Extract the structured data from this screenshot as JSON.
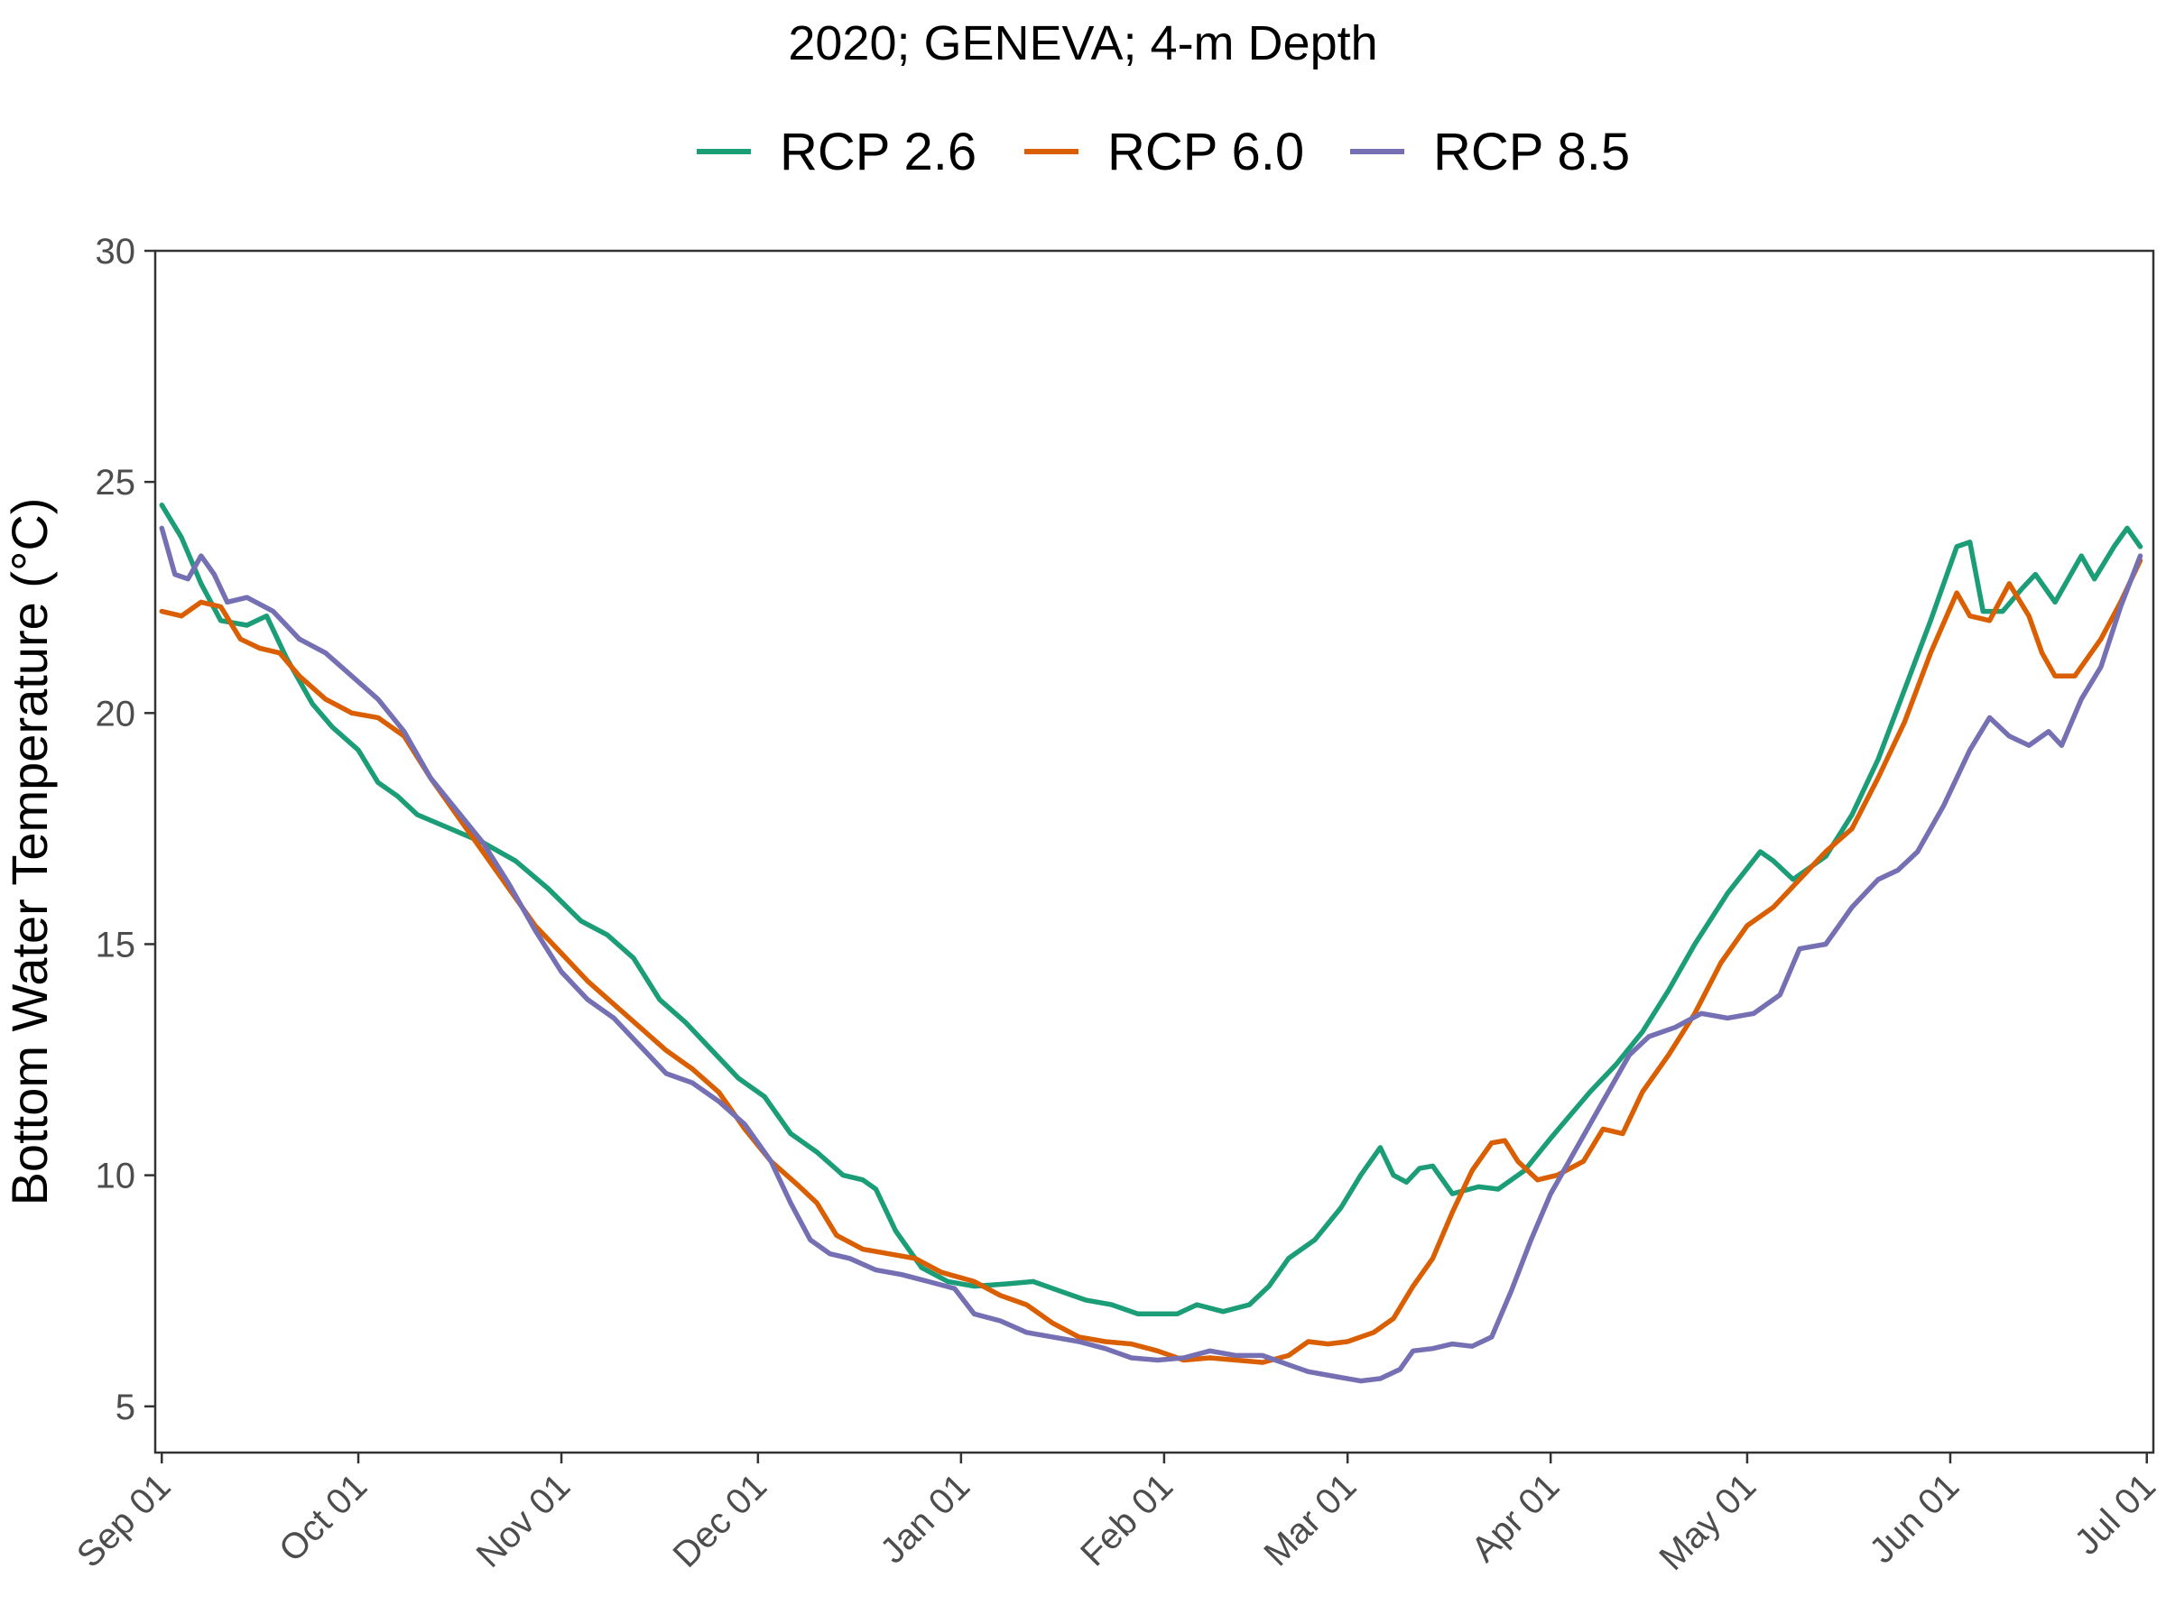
{
  "chart_data": {
    "type": "line",
    "title": "2020; GENEVA; 4-m Depth",
    "xlabel": "",
    "ylabel": "Bottom Water Temperature (°C)",
    "ylim": [
      4,
      30
    ],
    "xlim": [
      "2020-08-31",
      "2021-07-02"
    ],
    "yticks": [
      5,
      10,
      15,
      20,
      25,
      30
    ],
    "xticks": [
      {
        "date": "2020-09-01",
        "label": "Sep 01"
      },
      {
        "date": "2020-10-01",
        "label": "Oct 01"
      },
      {
        "date": "2020-11-01",
        "label": "Nov 01"
      },
      {
        "date": "2020-12-01",
        "label": "Dec 01"
      },
      {
        "date": "2021-01-01",
        "label": "Jan 01"
      },
      {
        "date": "2021-02-01",
        "label": "Feb 01"
      },
      {
        "date": "2021-03-01",
        "label": "Mar 01"
      },
      {
        "date": "2021-04-01",
        "label": "Apr 01"
      },
      {
        "date": "2021-05-01",
        "label": "May 01"
      },
      {
        "date": "2021-06-01",
        "label": "Jun 01"
      },
      {
        "date": "2021-07-01",
        "label": "Jul 01"
      }
    ],
    "grid": false,
    "legend_position": "top",
    "series": [
      {
        "name": "RCP 2.6",
        "color": "#1b9e77",
        "points": [
          [
            "2020-09-01",
            24.5
          ],
          [
            "2020-09-04",
            23.8
          ],
          [
            "2020-09-07",
            22.8
          ],
          [
            "2020-09-10",
            22.0
          ],
          [
            "2020-09-14",
            21.9
          ],
          [
            "2020-09-17",
            22.1
          ],
          [
            "2020-09-20",
            21.2
          ],
          [
            "2020-09-24",
            20.2
          ],
          [
            "2020-09-27",
            19.7
          ],
          [
            "2020-10-01",
            19.2
          ],
          [
            "2020-10-04",
            18.5
          ],
          [
            "2020-10-07",
            18.2
          ],
          [
            "2020-10-10",
            17.8
          ],
          [
            "2020-10-15",
            17.5
          ],
          [
            "2020-10-20",
            17.2
          ],
          [
            "2020-10-25",
            16.8
          ],
          [
            "2020-10-30",
            16.2
          ],
          [
            "2020-11-04",
            15.5
          ],
          [
            "2020-11-08",
            15.2
          ],
          [
            "2020-11-12",
            14.7
          ],
          [
            "2020-11-16",
            13.8
          ],
          [
            "2020-11-20",
            13.3
          ],
          [
            "2020-11-24",
            12.7
          ],
          [
            "2020-11-28",
            12.1
          ],
          [
            "2020-12-02",
            11.7
          ],
          [
            "2020-12-06",
            10.9
          ],
          [
            "2020-12-10",
            10.5
          ],
          [
            "2020-12-14",
            10.0
          ],
          [
            "2020-12-17",
            9.9
          ],
          [
            "2020-12-19",
            9.7
          ],
          [
            "2020-12-22",
            8.8
          ],
          [
            "2020-12-26",
            8.0
          ],
          [
            "2020-12-30",
            7.7
          ],
          [
            "2021-01-03",
            7.6
          ],
          [
            "2021-01-08",
            7.65
          ],
          [
            "2021-01-12",
            7.7
          ],
          [
            "2021-01-16",
            7.5
          ],
          [
            "2021-01-20",
            7.3
          ],
          [
            "2021-01-24",
            7.2
          ],
          [
            "2021-01-28",
            7.0
          ],
          [
            "2021-02-03",
            7.0
          ],
          [
            "2021-02-06",
            7.2
          ],
          [
            "2021-02-10",
            7.05
          ],
          [
            "2021-02-14",
            7.2
          ],
          [
            "2021-02-17",
            7.6
          ],
          [
            "2021-02-20",
            8.2
          ],
          [
            "2021-02-24",
            8.6
          ],
          [
            "2021-02-28",
            9.3
          ],
          [
            "2021-03-03",
            10.0
          ],
          [
            "2021-03-06",
            10.6
          ],
          [
            "2021-03-08",
            10.0
          ],
          [
            "2021-03-10",
            9.85
          ],
          [
            "2021-03-12",
            10.15
          ],
          [
            "2021-03-14",
            10.2
          ],
          [
            "2021-03-17",
            9.6
          ],
          [
            "2021-03-21",
            9.75
          ],
          [
            "2021-03-24",
            9.7
          ],
          [
            "2021-03-28",
            10.1
          ],
          [
            "2021-04-01",
            10.8
          ],
          [
            "2021-04-04",
            11.3
          ],
          [
            "2021-04-07",
            11.8
          ],
          [
            "2021-04-11",
            12.4
          ],
          [
            "2021-04-15",
            13.1
          ],
          [
            "2021-04-19",
            14.0
          ],
          [
            "2021-04-23",
            15.0
          ],
          [
            "2021-04-28",
            16.1
          ],
          [
            "2021-05-03",
            17.0
          ],
          [
            "2021-05-05",
            16.8
          ],
          [
            "2021-05-08",
            16.4
          ],
          [
            "2021-05-13",
            16.9
          ],
          [
            "2021-05-17",
            17.8
          ],
          [
            "2021-05-21",
            19.0
          ],
          [
            "2021-05-25",
            20.5
          ],
          [
            "2021-05-29",
            22.0
          ],
          [
            "2021-06-02",
            23.6
          ],
          [
            "2021-06-04",
            23.7
          ],
          [
            "2021-06-06",
            22.2
          ],
          [
            "2021-06-09",
            22.2
          ],
          [
            "2021-06-12",
            22.7
          ],
          [
            "2021-06-14",
            23.0
          ],
          [
            "2021-06-17",
            22.4
          ],
          [
            "2021-06-21",
            23.4
          ],
          [
            "2021-06-23",
            22.9
          ],
          [
            "2021-06-26",
            23.6
          ],
          [
            "2021-06-28",
            24.0
          ],
          [
            "2021-06-30",
            23.6
          ]
        ]
      },
      {
        "name": "RCP 6.0",
        "color": "#d95f02",
        "points": [
          [
            "2020-09-01",
            22.2
          ],
          [
            "2020-09-04",
            22.1
          ],
          [
            "2020-09-07",
            22.4
          ],
          [
            "2020-09-10",
            22.3
          ],
          [
            "2020-09-13",
            21.6
          ],
          [
            "2020-09-16",
            21.4
          ],
          [
            "2020-09-19",
            21.3
          ],
          [
            "2020-09-22",
            20.8
          ],
          [
            "2020-09-26",
            20.3
          ],
          [
            "2020-09-30",
            20.0
          ],
          [
            "2020-10-04",
            19.9
          ],
          [
            "2020-10-08",
            19.5
          ],
          [
            "2020-10-12",
            18.6
          ],
          [
            "2020-10-16",
            17.8
          ],
          [
            "2020-10-20",
            17.0
          ],
          [
            "2020-10-24",
            16.2
          ],
          [
            "2020-10-28",
            15.4
          ],
          [
            "2020-11-01",
            14.8
          ],
          [
            "2020-11-05",
            14.2
          ],
          [
            "2020-11-09",
            13.7
          ],
          [
            "2020-11-13",
            13.2
          ],
          [
            "2020-11-17",
            12.7
          ],
          [
            "2020-11-21",
            12.3
          ],
          [
            "2020-11-25",
            11.8
          ],
          [
            "2020-11-29",
            11.0
          ],
          [
            "2020-12-03",
            10.3
          ],
          [
            "2020-12-07",
            9.8
          ],
          [
            "2020-12-10",
            9.4
          ],
          [
            "2020-12-13",
            8.7
          ],
          [
            "2020-12-17",
            8.4
          ],
          [
            "2020-12-21",
            8.3
          ],
          [
            "2020-12-25",
            8.2
          ],
          [
            "2020-12-29",
            7.9
          ],
          [
            "2021-01-03",
            7.7
          ],
          [
            "2021-01-07",
            7.4
          ],
          [
            "2021-01-11",
            7.2
          ],
          [
            "2021-01-15",
            6.8
          ],
          [
            "2021-01-19",
            6.5
          ],
          [
            "2021-01-23",
            6.4
          ],
          [
            "2021-01-27",
            6.35
          ],
          [
            "2021-01-31",
            6.2
          ],
          [
            "2021-02-04",
            6.0
          ],
          [
            "2021-02-08",
            6.05
          ],
          [
            "2021-02-12",
            6.0
          ],
          [
            "2021-02-16",
            5.95
          ],
          [
            "2021-02-20",
            6.1
          ],
          [
            "2021-02-23",
            6.4
          ],
          [
            "2021-02-26",
            6.35
          ],
          [
            "2021-03-01",
            6.4
          ],
          [
            "2021-03-05",
            6.6
          ],
          [
            "2021-03-08",
            6.9
          ],
          [
            "2021-03-11",
            7.6
          ],
          [
            "2021-03-14",
            8.2
          ],
          [
            "2021-03-17",
            9.2
          ],
          [
            "2021-03-20",
            10.1
          ],
          [
            "2021-03-23",
            10.7
          ],
          [
            "2021-03-25",
            10.75
          ],
          [
            "2021-03-27",
            10.3
          ],
          [
            "2021-03-30",
            9.9
          ],
          [
            "2021-04-02",
            10.0
          ],
          [
            "2021-04-06",
            10.3
          ],
          [
            "2021-04-09",
            11.0
          ],
          [
            "2021-04-12",
            10.9
          ],
          [
            "2021-04-15",
            11.8
          ],
          [
            "2021-04-19",
            12.6
          ],
          [
            "2021-04-23",
            13.5
          ],
          [
            "2021-04-27",
            14.6
          ],
          [
            "2021-05-01",
            15.4
          ],
          [
            "2021-05-05",
            15.8
          ],
          [
            "2021-05-09",
            16.4
          ],
          [
            "2021-05-13",
            17.0
          ],
          [
            "2021-05-17",
            17.5
          ],
          [
            "2021-05-21",
            18.6
          ],
          [
            "2021-05-25",
            19.8
          ],
          [
            "2021-05-29",
            21.3
          ],
          [
            "2021-06-02",
            22.6
          ],
          [
            "2021-06-04",
            22.1
          ],
          [
            "2021-06-07",
            22.0
          ],
          [
            "2021-06-10",
            22.8
          ],
          [
            "2021-06-13",
            22.1
          ],
          [
            "2021-06-15",
            21.3
          ],
          [
            "2021-06-17",
            20.8
          ],
          [
            "2021-06-20",
            20.8
          ],
          [
            "2021-06-24",
            21.6
          ],
          [
            "2021-06-27",
            22.4
          ],
          [
            "2021-06-30",
            23.3
          ]
        ]
      },
      {
        "name": "RCP 8.5",
        "color": "#7570b3",
        "points": [
          [
            "2020-09-01",
            24.0
          ],
          [
            "2020-09-03",
            23.0
          ],
          [
            "2020-09-05",
            22.9
          ],
          [
            "2020-09-07",
            23.4
          ],
          [
            "2020-09-09",
            23.0
          ],
          [
            "2020-09-11",
            22.4
          ],
          [
            "2020-09-14",
            22.5
          ],
          [
            "2020-09-18",
            22.2
          ],
          [
            "2020-09-22",
            21.6
          ],
          [
            "2020-09-26",
            21.3
          ],
          [
            "2020-09-30",
            20.8
          ],
          [
            "2020-10-04",
            20.3
          ],
          [
            "2020-10-08",
            19.6
          ],
          [
            "2020-10-12",
            18.6
          ],
          [
            "2020-10-16",
            17.9
          ],
          [
            "2020-10-20",
            17.2
          ],
          [
            "2020-10-24",
            16.3
          ],
          [
            "2020-10-28",
            15.3
          ],
          [
            "2020-11-01",
            14.4
          ],
          [
            "2020-11-05",
            13.8
          ],
          [
            "2020-11-09",
            13.4
          ],
          [
            "2020-11-13",
            12.8
          ],
          [
            "2020-11-17",
            12.2
          ],
          [
            "2020-11-21",
            12.0
          ],
          [
            "2020-11-25",
            11.6
          ],
          [
            "2020-11-29",
            11.1
          ],
          [
            "2020-12-03",
            10.3
          ],
          [
            "2020-12-06",
            9.4
          ],
          [
            "2020-12-09",
            8.6
          ],
          [
            "2020-12-12",
            8.3
          ],
          [
            "2020-12-15",
            8.2
          ],
          [
            "2020-12-19",
            7.95
          ],
          [
            "2020-12-23",
            7.85
          ],
          [
            "2020-12-27",
            7.7
          ],
          [
            "2020-12-31",
            7.55
          ],
          [
            "2021-01-03",
            7.0
          ],
          [
            "2021-01-07",
            6.85
          ],
          [
            "2021-01-11",
            6.6
          ],
          [
            "2021-01-15",
            6.5
          ],
          [
            "2021-01-19",
            6.4
          ],
          [
            "2021-01-23",
            6.25
          ],
          [
            "2021-01-27",
            6.05
          ],
          [
            "2021-01-31",
            6.0
          ],
          [
            "2021-02-04",
            6.05
          ],
          [
            "2021-02-08",
            6.2
          ],
          [
            "2021-02-12",
            6.1
          ],
          [
            "2021-02-16",
            6.1
          ],
          [
            "2021-02-20",
            5.9
          ],
          [
            "2021-02-23",
            5.75
          ],
          [
            "2021-02-27",
            5.65
          ],
          [
            "2021-03-03",
            5.55
          ],
          [
            "2021-03-06",
            5.6
          ],
          [
            "2021-03-09",
            5.8
          ],
          [
            "2021-03-11",
            6.2
          ],
          [
            "2021-03-14",
            6.25
          ],
          [
            "2021-03-17",
            6.35
          ],
          [
            "2021-03-20",
            6.3
          ],
          [
            "2021-03-23",
            6.5
          ],
          [
            "2021-03-26",
            7.5
          ],
          [
            "2021-03-29",
            8.6
          ],
          [
            "2021-04-01",
            9.6
          ],
          [
            "2021-04-05",
            10.6
          ],
          [
            "2021-04-09",
            11.6
          ],
          [
            "2021-04-13",
            12.6
          ],
          [
            "2021-04-16",
            13.0
          ],
          [
            "2021-04-20",
            13.2
          ],
          [
            "2021-04-24",
            13.5
          ],
          [
            "2021-04-28",
            13.4
          ],
          [
            "2021-05-02",
            13.5
          ],
          [
            "2021-05-06",
            13.9
          ],
          [
            "2021-05-09",
            14.9
          ],
          [
            "2021-05-13",
            15.0
          ],
          [
            "2021-05-17",
            15.8
          ],
          [
            "2021-05-21",
            16.4
          ],
          [
            "2021-05-24",
            16.6
          ],
          [
            "2021-05-27",
            17.0
          ],
          [
            "2021-05-31",
            18.0
          ],
          [
            "2021-06-04",
            19.2
          ],
          [
            "2021-06-07",
            19.9
          ],
          [
            "2021-06-10",
            19.5
          ],
          [
            "2021-06-13",
            19.3
          ],
          [
            "2021-06-16",
            19.6
          ],
          [
            "2021-06-18",
            19.3
          ],
          [
            "2021-06-21",
            20.3
          ],
          [
            "2021-06-24",
            21.0
          ],
          [
            "2021-06-27",
            22.3
          ],
          [
            "2021-06-30",
            23.4
          ]
        ]
      }
    ]
  }
}
